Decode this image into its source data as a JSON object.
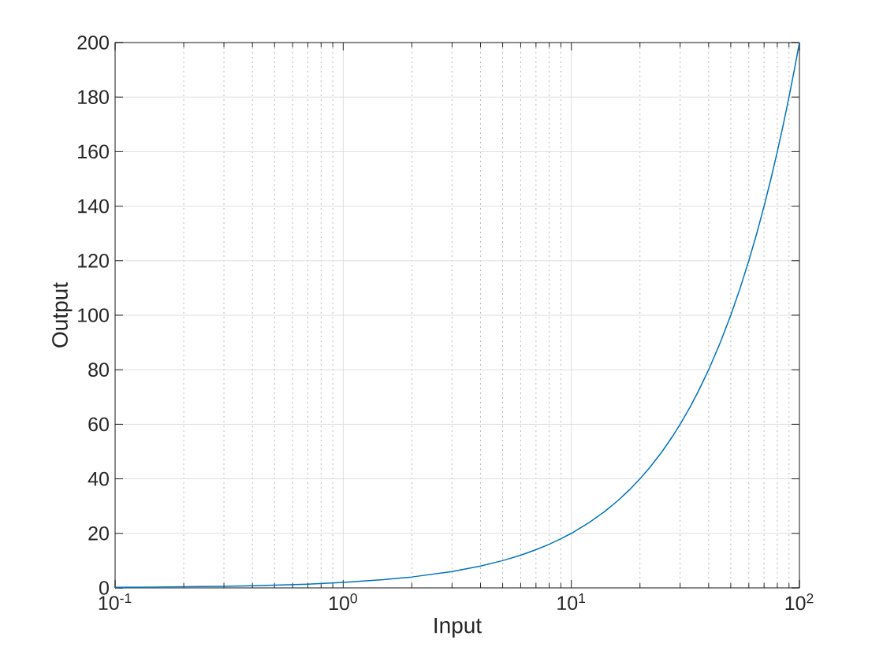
{
  "chart_data": {
    "type": "line",
    "xlabel": "Input",
    "ylabel": "Output",
    "x": [
      0.1,
      0.15,
      0.2,
      0.3,
      0.4,
      0.5,
      0.7,
      1,
      1.5,
      2,
      3,
      4,
      5,
      6,
      7,
      8,
      9,
      10,
      12,
      14,
      16,
      18,
      20,
      22,
      25,
      28,
      30,
      33,
      36,
      40,
      45,
      50,
      55,
      60,
      65,
      70,
      75,
      80,
      85,
      90,
      95,
      100
    ],
    "series": [
      {
        "color": "#0072bd",
        "values": [
          0.2,
          0.3,
          0.4,
          0.6,
          0.8,
          1,
          1.4,
          2,
          3,
          4,
          6,
          8,
          10,
          12,
          14,
          16,
          18,
          20,
          24,
          28,
          32,
          36,
          40,
          44,
          50,
          56,
          60,
          66,
          72,
          80,
          90,
          100,
          110,
          120,
          130,
          140,
          150,
          160,
          170,
          180,
          190,
          200
        ]
      }
    ],
    "log": "x",
    "grid": true,
    "xlim": [
      0.1,
      100
    ],
    "ylim": [
      0,
      200
    ],
    "xticks": [
      {
        "value": 0.1,
        "label": "10$^{-1}$"
      },
      {
        "value": 1,
        "label": "10$^{0}$"
      },
      {
        "value": 10,
        "label": "10$^{1}$"
      },
      {
        "value": 100,
        "label": "10$^{2}$"
      }
    ],
    "yticks": [
      0,
      20,
      40,
      60,
      80,
      100,
      120,
      140,
      160,
      180,
      200
    ]
  }
}
